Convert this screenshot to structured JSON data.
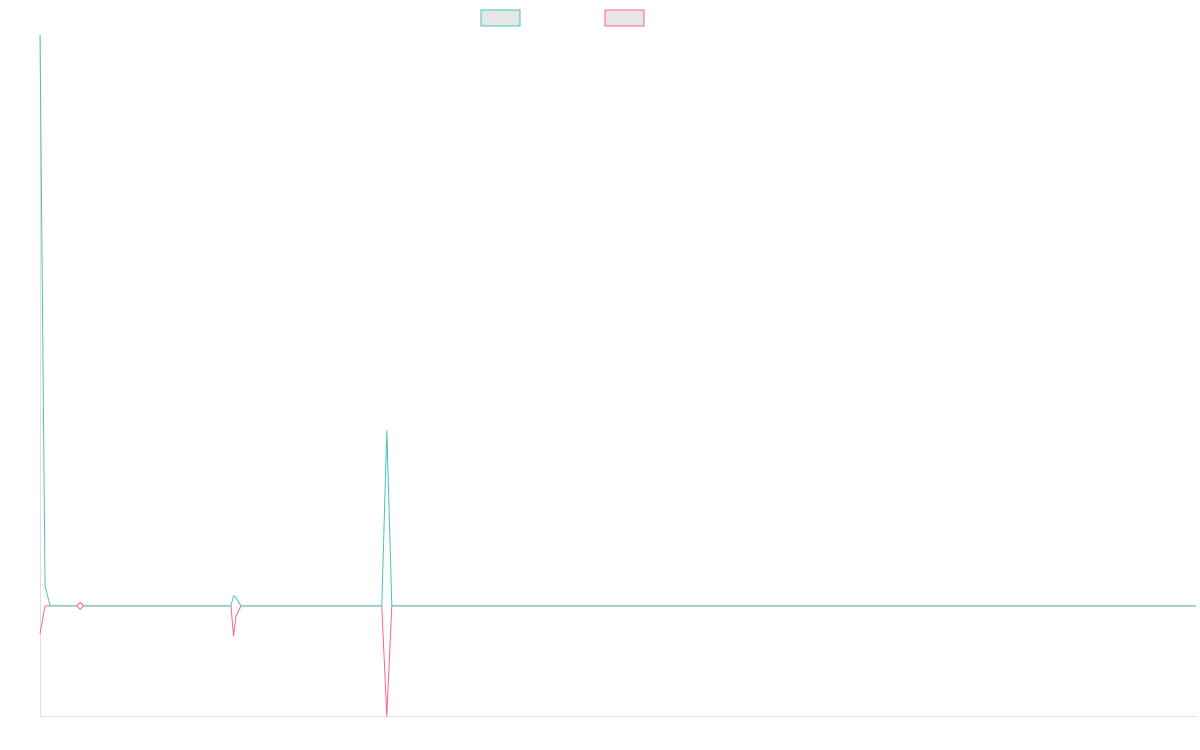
{
  "chart_data": {
    "type": "line",
    "title": "",
    "xlabel": "",
    "ylabel": "",
    "grid": false,
    "legend_position": "top-center",
    "ylim": [
      -110,
      570
    ],
    "series": [
      {
        "name": "",
        "color": "#4bc0c0",
        "legend_fill": "#e6e6e6",
        "points": [
          [
            0,
            570
          ],
          [
            1,
            20
          ],
          [
            2,
            0
          ],
          [
            3,
            0
          ],
          [
            4,
            0
          ],
          [
            5,
            0
          ],
          [
            6,
            0
          ],
          [
            7,
            0
          ],
          [
            8,
            0
          ],
          [
            9,
            0
          ],
          [
            10,
            0
          ],
          [
            11,
            0
          ],
          [
            12,
            0
          ],
          [
            13,
            0
          ],
          [
            14,
            0
          ],
          [
            15,
            0
          ],
          [
            16,
            0
          ],
          [
            17,
            0
          ],
          [
            18,
            0
          ],
          [
            19,
            0
          ],
          [
            20,
            0
          ],
          [
            21,
            0
          ],
          [
            22,
            0
          ],
          [
            23,
            0
          ],
          [
            24,
            0
          ],
          [
            25,
            0
          ],
          [
            26,
            0
          ],
          [
            27,
            0
          ],
          [
            28,
            0
          ],
          [
            29,
            0
          ],
          [
            30,
            0
          ],
          [
            31,
            0
          ],
          [
            32,
            0
          ],
          [
            33,
            0
          ],
          [
            34,
            0
          ],
          [
            35,
            0
          ],
          [
            36,
            0
          ],
          [
            37,
            0
          ],
          [
            38,
            0
          ],
          [
            38.5,
            10
          ],
          [
            39,
            8
          ],
          [
            40,
            0
          ],
          [
            41,
            0
          ],
          [
            68,
            0
          ],
          [
            69,
            175
          ],
          [
            70,
            0
          ],
          [
            230,
            0
          ]
        ]
      },
      {
        "name": "",
        "color": "#ff6384",
        "legend_fill": "#e6e6e6",
        "points": [
          [
            0,
            -28
          ],
          [
            1,
            0
          ],
          [
            2,
            0
          ],
          [
            3,
            0
          ],
          [
            4,
            0
          ],
          [
            5,
            0
          ],
          [
            6,
            0
          ],
          [
            7,
            0
          ],
          [
            8,
            0
          ],
          [
            9,
            0
          ],
          [
            10,
            0
          ],
          [
            11,
            0
          ],
          [
            12,
            0
          ],
          [
            13,
            0
          ],
          [
            14,
            0
          ],
          [
            15,
            0
          ],
          [
            16,
            0
          ],
          [
            17,
            0
          ],
          [
            18,
            0
          ],
          [
            19,
            0
          ],
          [
            20,
            0
          ],
          [
            21,
            0
          ],
          [
            22,
            0
          ],
          [
            23,
            0
          ],
          [
            24,
            0
          ],
          [
            25,
            0
          ],
          [
            26,
            0
          ],
          [
            27,
            0
          ],
          [
            28,
            0
          ],
          [
            29,
            0
          ],
          [
            30,
            0
          ],
          [
            31,
            0
          ],
          [
            32,
            0
          ],
          [
            33,
            0
          ],
          [
            34,
            0
          ],
          [
            35,
            0
          ],
          [
            36,
            0
          ],
          [
            37,
            0
          ],
          [
            38,
            0
          ],
          [
            38.5,
            -30
          ],
          [
            39,
            -10
          ],
          [
            40,
            0
          ],
          [
            41,
            0
          ],
          [
            68,
            0
          ],
          [
            69,
            -110
          ],
          [
            70,
            0
          ],
          [
            230,
            0
          ]
        ]
      }
    ],
    "markers": [
      {
        "series": 1,
        "x": 8,
        "y": 0,
        "shape": "diamond",
        "color": "#ff6384"
      }
    ]
  }
}
